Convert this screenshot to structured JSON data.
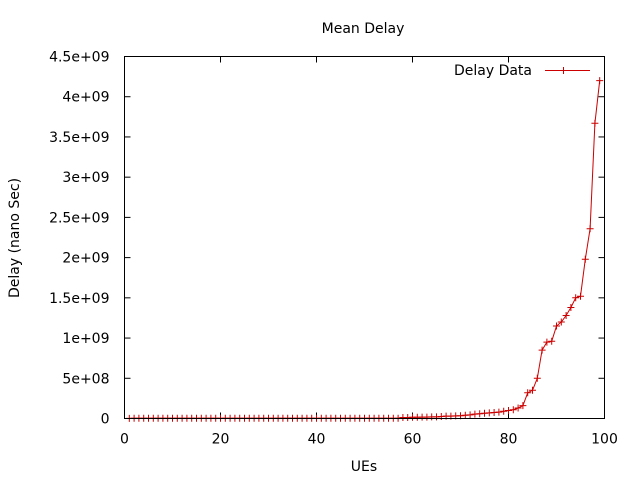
{
  "chart_data": {
    "type": "line",
    "title": "Mean Delay",
    "xlabel": "UEs",
    "ylabel": "Delay (nano Sec)",
    "xlim": [
      0,
      100
    ],
    "ylim": [
      0,
      4500000000
    ],
    "xticks": [
      0,
      20,
      40,
      60,
      80,
      100
    ],
    "xtick_labels": [
      "0",
      "20",
      "40",
      "60",
      "80",
      "100"
    ],
    "yticks": [
      0,
      500000000,
      1000000000,
      1500000000,
      2000000000,
      2500000000,
      3000000000,
      3500000000,
      4000000000,
      4500000000
    ],
    "ytick_labels": [
      "0",
      "5e+08",
      "1e+09",
      "1.5e+09",
      "2e+09",
      "2.5e+09",
      "3e+09",
      "3.5e+09",
      "4e+09",
      "4.5e+09"
    ],
    "grid": false,
    "legend": {
      "position": "top-right",
      "entries": [
        "Delay Data"
      ]
    },
    "series": [
      {
        "name": "Delay Data",
        "color": "#cc0000",
        "marker": "plus",
        "x": [
          1,
          2,
          3,
          4,
          5,
          6,
          7,
          8,
          9,
          10,
          11,
          12,
          13,
          14,
          15,
          16,
          17,
          18,
          19,
          20,
          21,
          22,
          23,
          24,
          25,
          26,
          27,
          28,
          29,
          30,
          31,
          32,
          33,
          34,
          35,
          36,
          37,
          38,
          39,
          40,
          41,
          42,
          43,
          44,
          45,
          46,
          47,
          48,
          49,
          50,
          51,
          52,
          53,
          54,
          55,
          56,
          57,
          58,
          59,
          60,
          61,
          62,
          63,
          64,
          65,
          66,
          67,
          68,
          69,
          70,
          71,
          72,
          73,
          74,
          75,
          76,
          77,
          78,
          79,
          80,
          81,
          82,
          83,
          84,
          85,
          86,
          87,
          88,
          89,
          90,
          91,
          92,
          93,
          94,
          95,
          96,
          97,
          98,
          99
        ],
        "y": [
          1000000,
          2000000,
          3000000,
          3000000,
          3000000,
          3000000,
          3000000,
          3000000,
          3000000,
          3000000,
          3000000,
          3000000,
          3000000,
          3000000,
          3000000,
          3000000,
          3000000,
          3000000,
          3000000,
          3000000,
          3000000,
          3000000,
          3000000,
          3000000,
          3000000,
          3000000,
          3000000,
          3000000,
          3000000,
          3000000,
          3000000,
          3000000,
          3000000,
          3000000,
          3000000,
          3000000,
          3000000,
          3000000,
          3000000,
          3000000,
          3000000,
          3000000,
          3000000,
          3000000,
          3000000,
          3000000,
          3000000,
          3000000,
          3000000,
          3000000,
          3000000,
          3000000,
          3000000,
          3000000,
          3000000,
          3000000,
          3000000,
          12000000,
          12000000,
          15000000,
          15000000,
          18000000,
          18000000,
          20000000,
          20000000,
          25000000,
          30000000,
          30000000,
          32000000,
          35000000,
          40000000,
          45000000,
          55000000,
          60000000,
          65000000,
          70000000,
          75000000,
          80000000,
          90000000,
          100000000,
          110000000,
          130000000,
          160000000,
          320000000,
          350000000,
          500000000,
          850000000,
          950000000,
          960000000,
          1150000000,
          1200000000,
          1280000000,
          1380000000,
          1500000000,
          1520000000,
          1980000000,
          2360000000,
          3670000000,
          4200000000
        ]
      }
    ]
  }
}
